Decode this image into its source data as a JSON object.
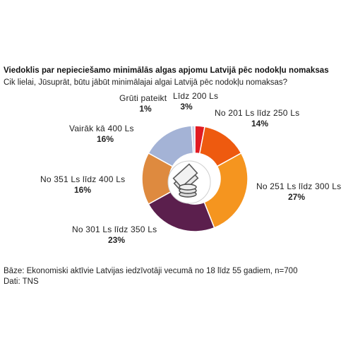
{
  "title": "Viedoklis par nepieciešamo minimālās algas apjomu Latvijā pēc nodokļu nomaksas",
  "subtitle": "Cik lielai, Jūsuprāt, būtu jābūt minimālajai algai Latvijā pēc nodokļu nomaksas?",
  "footer": {
    "base": "Bāze: Ekonomiski aktīvie Latvijas iedzīvotāji vecumā no 18 līdz 55 gadiem, n=700",
    "source": "Dati: TNS"
  },
  "center_icon": "coins-and-banknotes-icon",
  "chart_data": {
    "type": "pie",
    "donut": true,
    "unit": "%",
    "slices": [
      {
        "label": "Līdz 200 Ls",
        "value": 3,
        "display": "3%",
        "color": "#e11b22"
      },
      {
        "label": "No 201 Ls līdz 250 Ls",
        "value": 14,
        "display": "14%",
        "color": "#ee5a0f"
      },
      {
        "label": "No 251 Ls līdz 300 Ls",
        "value": 27,
        "display": "27%",
        "color": "#f5951f"
      },
      {
        "label": "No 301 Ls līdz 350 Ls",
        "value": 23,
        "display": "23%",
        "color": "#5b1f4d"
      },
      {
        "label": "No 351 Ls līdz 400 Ls",
        "value": 16,
        "display": "16%",
        "color": "#de8a3f"
      },
      {
        "label": "Vairāk kā 400 Ls",
        "value": 16,
        "display": "16%",
        "color": "#a4b3d6"
      },
      {
        "label": "Grūti pateikt",
        "value": 1,
        "display": "1%",
        "color": "#c8d2e8"
      }
    ]
  }
}
